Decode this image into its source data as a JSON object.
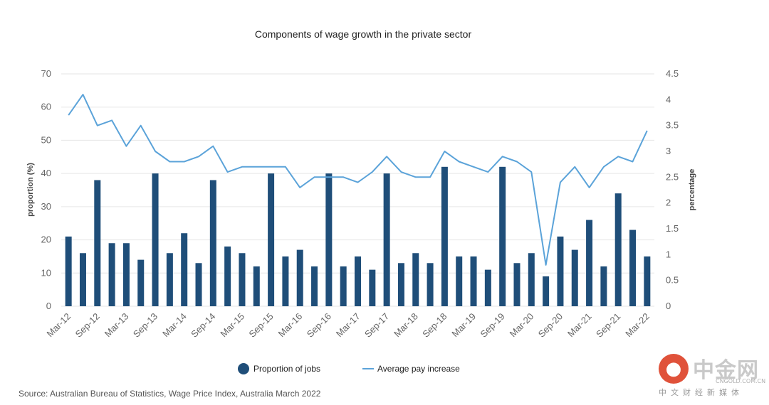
{
  "chart_data": {
    "type": "bar+line",
    "title": "Components of wage growth in the private sector",
    "categories": [
      "Mar-12",
      "Jun-12",
      "Sep-12",
      "Dec-12",
      "Mar-13",
      "Jun-13",
      "Sep-13",
      "Dec-13",
      "Mar-14",
      "Jun-14",
      "Sep-14",
      "Dec-14",
      "Mar-15",
      "Jun-15",
      "Sep-15",
      "Dec-15",
      "Mar-16",
      "Jun-16",
      "Sep-16",
      "Dec-16",
      "Mar-17",
      "Jun-17",
      "Sep-17",
      "Dec-17",
      "Mar-18",
      "Jun-18",
      "Sep-18",
      "Dec-18",
      "Mar-19",
      "Jun-19",
      "Sep-19",
      "Dec-19",
      "Mar-20",
      "Jun-20",
      "Sep-20",
      "Dec-20",
      "Mar-21",
      "Jun-21",
      "Sep-21",
      "Dec-21",
      "Mar-22"
    ],
    "x_tick_labels": [
      "Mar-12",
      "Sep-12",
      "Mar-13",
      "Sep-13",
      "Mar-14",
      "Sep-14",
      "Mar-15",
      "Sep-15",
      "Mar-16",
      "Sep-16",
      "Mar-17",
      "Sep-17",
      "Mar-18",
      "Sep-18",
      "Mar-19",
      "Sep-19",
      "Mar-20",
      "Sep-20",
      "Mar-21",
      "Sep-21",
      "Mar-22"
    ],
    "series": [
      {
        "name": "Proportion of jobs",
        "type": "bar",
        "axis": "left",
        "color": "#1f4e79",
        "values": [
          21,
          16,
          38,
          19,
          19,
          14,
          40,
          16,
          22,
          13,
          38,
          18,
          16,
          12,
          40,
          15,
          17,
          12,
          40,
          12,
          15,
          11,
          40,
          13,
          16,
          13,
          42,
          15,
          15,
          11,
          42,
          13,
          16,
          9,
          21,
          17,
          26,
          12,
          34,
          23,
          15
        ]
      },
      {
        "name": "Average pay increase",
        "type": "line",
        "axis": "right",
        "color": "#5ba3d9",
        "values": [
          3.7,
          4.1,
          3.5,
          3.6,
          3.1,
          3.5,
          3.0,
          2.8,
          2.8,
          2.9,
          3.1,
          2.6,
          2.7,
          2.7,
          2.7,
          2.7,
          2.3,
          2.5,
          2.5,
          2.5,
          2.4,
          2.6,
          2.9,
          2.6,
          2.5,
          2.5,
          3.0,
          2.8,
          2.7,
          2.6,
          2.9,
          2.8,
          2.6,
          0.8,
          2.4,
          2.7,
          2.3,
          2.7,
          2.9,
          2.8,
          3.4
        ]
      }
    ],
    "y_left": {
      "label": "proportion (%)",
      "lim": [
        0,
        70
      ],
      "ticks": [
        "0",
        "10",
        "20",
        "30",
        "40",
        "50",
        "60",
        "70"
      ]
    },
    "y_right": {
      "label": "percentage",
      "lim": [
        0,
        4.5
      ],
      "ticks": [
        "0",
        "0.5",
        "1",
        "1.5",
        "2",
        "2.5",
        "3",
        "3.5",
        "4",
        "4.5"
      ]
    },
    "grid": true,
    "legend_position": "bottom"
  },
  "source": "Source: Australian Bureau of Statistics, Wage Price Index, Australia March 2022",
  "watermark": {
    "name": "中金网",
    "url": "CNGOLD.COM.CN",
    "tagline": "中文财经新媒体"
  }
}
